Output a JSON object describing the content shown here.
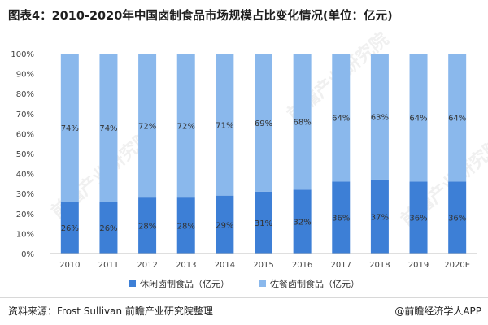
{
  "header": {
    "title": "图表4：2010-2020年中国卤制食品市场规模占比变化情况(单位：亿元)"
  },
  "footer": {
    "source": "资料来源：Frost Sullivan 前瞻产业研究院整理",
    "brand": "@前瞻经济学人APP"
  },
  "watermark": {
    "text": "前瞻产业研究院"
  },
  "chart_data": {
    "type": "bar",
    "stacked": true,
    "percent": true,
    "categories": [
      "2010",
      "2011",
      "2012",
      "2013",
      "2014",
      "2015",
      "2016",
      "2017",
      "2018",
      "2019",
      "2020E"
    ],
    "series": [
      {
        "name": "休闲卤制食品（亿元）",
        "color": "#3d7fd6",
        "values": [
          26,
          26,
          28,
          28,
          29,
          31,
          32,
          36,
          37,
          36,
          36
        ],
        "labels": [
          "26%",
          "26%",
          "28%",
          "28%",
          "29%",
          "31%",
          "32%",
          "36%",
          "37%",
          "36%",
          "36%"
        ]
      },
      {
        "name": "佐餐卤制食品（亿元）",
        "color": "#8ab8ec",
        "values": [
          74,
          74,
          72,
          72,
          71,
          69,
          68,
          64,
          63,
          64,
          64
        ],
        "labels": [
          "74%",
          "74%",
          "72%",
          "72%",
          "71%",
          "69%",
          "68%",
          "64%",
          "63%",
          "64%",
          "64%"
        ]
      }
    ],
    "yticks": [
      "0%",
      "10%",
      "20%",
      "30%",
      "40%",
      "50%",
      "60%",
      "70%",
      "80%",
      "90%",
      "100%"
    ],
    "ylim": [
      0,
      100
    ],
    "legend": "bottom-center",
    "grid": false
  }
}
